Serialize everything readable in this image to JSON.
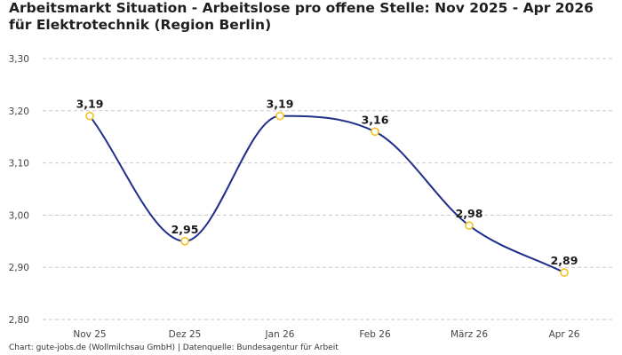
{
  "chart_data": {
    "type": "line",
    "title": "Arbeitsmarkt Situation - Arbeitslose pro offene Stelle: Nov 2025 - Apr 2026 für Elektrotechnik (Region Berlin)",
    "categories": [
      "Nov 25",
      "Dez 25",
      "Jan 26",
      "Feb 26",
      "März 26",
      "Apr 26"
    ],
    "series": [
      {
        "values": [
          3.19,
          2.95,
          3.19,
          3.16,
          2.98,
          2.89
        ]
      }
    ],
    "data_labels": [
      "3,19",
      "2,95",
      "3,19",
      "3,16",
      "2,98",
      "2,89"
    ],
    "y_ticks": [
      2.8,
      2.9,
      3.0,
      3.1,
      3.2,
      3.3
    ],
    "y_tick_labels": [
      "2,80",
      "2,90",
      "3,00",
      "3,10",
      "3,20",
      "3,30"
    ],
    "ylim": [
      2.8,
      3.3
    ],
    "grid": "horizontal dashed",
    "line_color": "#1f2f8a",
    "marker_color": "#f2c21b",
    "xlabel": "",
    "ylabel": ""
  },
  "footer": {
    "source": "Chart: gute-jobs.de (Wollmilchsau GmbH) | Datenquelle: Bundesagentur für Arbeit"
  }
}
